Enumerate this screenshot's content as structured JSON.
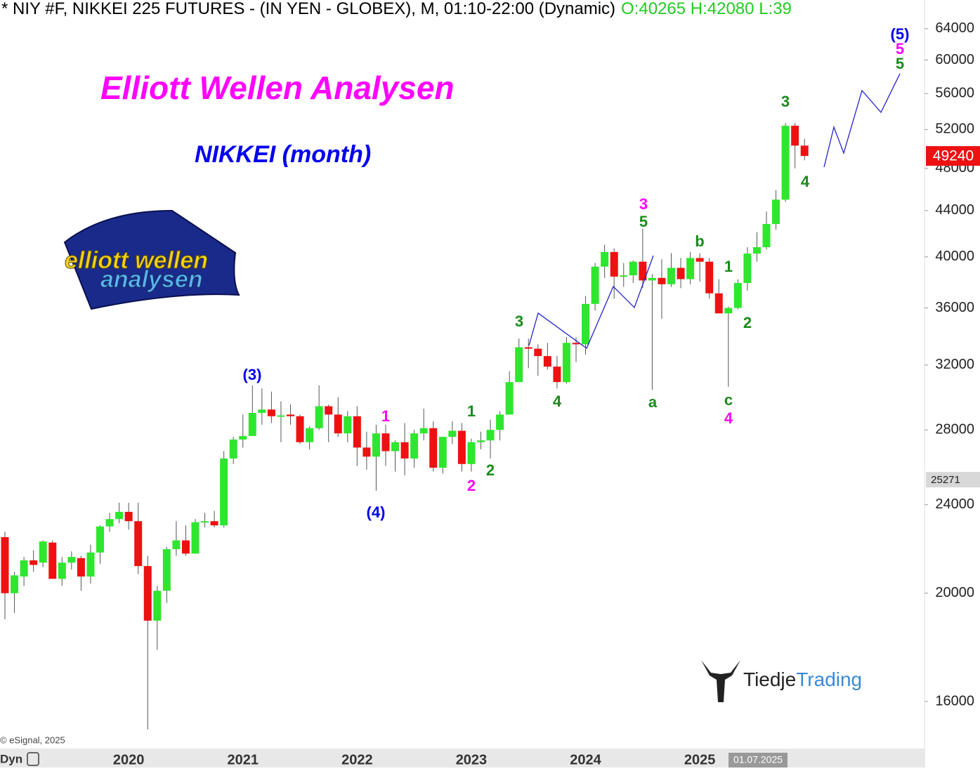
{
  "chart_data": {
    "type": "candlestick",
    "title": "* NIY #F, NIKKEI 225 FUTURES - (IN YEN - GLOBEX), M, 01:10-22:00 (Dynamic)",
    "title_ohlc": "O:40265 H:42080 L:39",
    "heading": "Elliott Wellen Analysen",
    "subheading": "NIKKEI (month)",
    "logo": [
      "elliott wellen",
      "analysen"
    ],
    "brand": [
      "Tiedje",
      "Trading"
    ],
    "copyright": "© eSignal, 2025",
    "session": "Dyn",
    "crosshair_date": "01.07.2025",
    "crosshair_price": 25271,
    "log_scale": true,
    "up_color": "#2ee62e",
    "down_color": "#ee1111",
    "categories": [
      null,
      null,
      null,
      null,
      null,
      null,
      null,
      null,
      null,
      null,
      null,
      null,
      null,
      "2020",
      null,
      null,
      null,
      null,
      null,
      null,
      null,
      null,
      null,
      null,
      null,
      "2021",
      null,
      null,
      null,
      null,
      null,
      null,
      null,
      null,
      null,
      null,
      null,
      "2022",
      null,
      null,
      null,
      null,
      null,
      null,
      null,
      null,
      null,
      null,
      null,
      "2023",
      null,
      null,
      null,
      null,
      null,
      null,
      null,
      null,
      null,
      null,
      null,
      "2024",
      null,
      null,
      null,
      null,
      null,
      null,
      null,
      null,
      null,
      null,
      null,
      "2025",
      null,
      null,
      null,
      null,
      null,
      null,
      null,
      null,
      null,
      null,
      null
    ],
    "open": [
      22450,
      20000,
      20700,
      21400,
      21300,
      22200,
      20600,
      21300,
      21500,
      20700,
      21750,
      22950,
      23300,
      23650,
      23200,
      21150,
      18900,
      20100,
      21900,
      22300,
      21700,
      23150,
      23200,
      23000,
      26400,
      27450,
      27650,
      29000,
      29200,
      28800,
      28900,
      28800,
      27300,
      28100,
      29400,
      28900,
      27800,
      28800,
      27000,
      26500,
      27800,
      26800,
      27300,
      26400,
      27800,
      28100,
      25900,
      27600,
      27950,
      26100,
      27300,
      27400,
      28000,
      28900,
      30900,
      33200,
      33100,
      32600,
      31900,
      30900,
      33500,
      33400,
      36300,
      39200,
      40400,
      38400,
      38500,
      39600,
      38100,
      38300,
      37800,
      39100,
      38200,
      39900,
      39600,
      37100,
      35600,
      36000,
      37900,
      40265,
      40800,
      42800,
      45000,
      52400,
      50300
    ],
    "high": [
      22700,
      20900,
      21550,
      21850,
      22300,
      22300,
      21550,
      21800,
      21600,
      22100,
      23000,
      23600,
      24100,
      24100,
      24100,
      21600,
      20300,
      22000,
      23200,
      23000,
      23300,
      23600,
      23700,
      26800,
      27600,
      28900,
      30700,
      30500,
      30300,
      29700,
      29500,
      28900,
      28200,
      30700,
      29500,
      29950,
      29100,
      29400,
      27900,
      28300,
      28300,
      27400,
      28400,
      28000,
      29250,
      28500,
      27600,
      28500,
      28400,
      27500,
      27900,
      28600,
      29100,
      31600,
      33800,
      33800,
      33400,
      33500,
      32600,
      33900,
      33900,
      36900,
      39500,
      41000,
      40700,
      39500,
      39700,
      42400,
      38600,
      39800,
      40300,
      39900,
      40400,
      40300,
      39900,
      38200,
      36100,
      38200,
      40800,
      42080,
      43900,
      45900,
      52700,
      52700,
      51000
    ],
    "low": [
      18950,
      19200,
      20300,
      20900,
      21100,
      20700,
      20300,
      21000,
      20100,
      20400,
      21250,
      22700,
      23100,
      22800,
      20800,
      15100,
      17800,
      19600,
      21600,
      21600,
      21700,
      22900,
      22900,
      22900,
      26100,
      27000,
      27700,
      28300,
      28400,
      27300,
      28300,
      27200,
      26900,
      28000,
      27300,
      27600,
      27300,
      26000,
      25800,
      24700,
      26000,
      25700,
      25500,
      25900,
      27400,
      25700,
      25600,
      27200,
      25700,
      25700,
      26900,
      26400,
      27400,
      28900,
      30900,
      31800,
      31300,
      31700,
      30500,
      30800,
      32200,
      32700,
      35800,
      38300,
      36700,
      37600,
      37900,
      37500,
      30400,
      35200,
      37600,
      37500,
      37800,
      38000,
      36700,
      35600,
      30600,
      35900,
      37300,
      39600,
      40600,
      42300,
      44800,
      48000,
      48800
    ],
    "close": [
      20000,
      20750,
      21400,
      21200,
      22250,
      20600,
      21300,
      21550,
      20700,
      21750,
      22950,
      23300,
      23650,
      23200,
      21150,
      18900,
      20100,
      21900,
      22300,
      21700,
      23150,
      23200,
      23000,
      26400,
      27450,
      27650,
      29000,
      29200,
      28800,
      28850,
      28800,
      27300,
      28100,
      29400,
      28900,
      27800,
      28800,
      27000,
      26500,
      27800,
      26800,
      27300,
      26400,
      27800,
      28100,
      25900,
      27600,
      27950,
      26100,
      27300,
      27400,
      28000,
      28900,
      30900,
      33200,
      33100,
      32600,
      31900,
      30900,
      33500,
      33400,
      36300,
      39200,
      40400,
      38400,
      38500,
      39600,
      38100,
      38300,
      37800,
      39100,
      38200,
      39900,
      39600,
      37100,
      35600,
      36000,
      37900,
      40265,
      40800,
      42800,
      45000,
      52400,
      50300,
      49240
    ],
    "ylim": [
      14543,
      67900
    ],
    "yticks": [
      16000,
      20000,
      24000,
      28000,
      32000,
      36000,
      40000,
      44000,
      48000,
      52000,
      56000,
      60000,
      64000
    ],
    "annotations": [
      {
        "text": "(5)",
        "color": "#0000ee"
      },
      {
        "text": "5",
        "color": "#ff00ff"
      },
      {
        "text": "5",
        "color": "#1a8a1a"
      },
      {
        "text": "3",
        "color": "#1a8a1a"
      },
      {
        "text": "4",
        "color": "#1a8a1a"
      },
      {
        "text": "3",
        "color": "#ff00ff"
      },
      {
        "text": "5",
        "color": "#1a8a1a"
      },
      {
        "text": "b",
        "color": "#1a8a1a"
      },
      {
        "text": "1",
        "color": "#1a8a1a"
      },
      {
        "text": "2",
        "color": "#1a8a1a"
      },
      {
        "text": "a",
        "color": "#1a8a1a"
      },
      {
        "text": "c",
        "color": "#1a8a1a"
      },
      {
        "text": "4",
        "color": "#ff00ff"
      },
      {
        "text": "3",
        "color": "#1a8a1a"
      },
      {
        "text": "4",
        "color": "#1a8a1a"
      },
      {
        "text": "1",
        "color": "#1a8a1a"
      },
      {
        "text": "2",
        "color": "#ff00ff"
      },
      {
        "text": "2",
        "color": "#1a8a1a"
      },
      {
        "text": "1",
        "color": "#ff00ff"
      },
      {
        "text": "(4)",
        "color": "#0000ee"
      },
      {
        "text": "(3)",
        "color": "#0000ee"
      }
    ]
  }
}
